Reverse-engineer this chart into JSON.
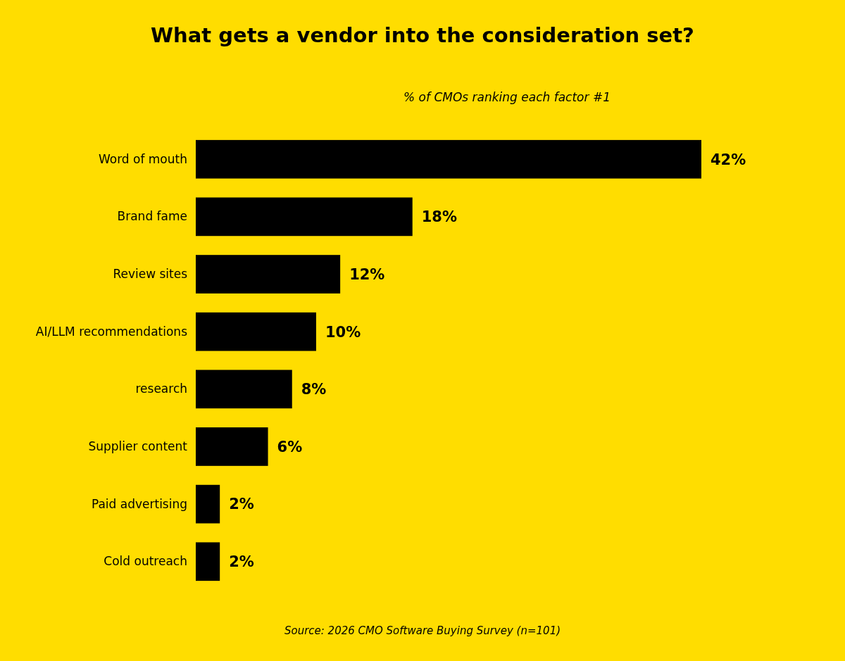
{
  "chart_data": {
    "type": "bar",
    "orientation": "horizontal",
    "title": "What gets a vendor into the consideration set?",
    "subtitle": "% of CMOs ranking each factor #1",
    "categories": [
      "Word of mouth",
      "Brand fame",
      "Review sites",
      "AI/LLM recommendations",
      "research",
      "Supplier content",
      "Paid advertising",
      "Cold outreach"
    ],
    "values": [
      42,
      18,
      12,
      10,
      8,
      6,
      2,
      2
    ],
    "value_labels": [
      "42%",
      "18%",
      "12%",
      "10%",
      "8%",
      "6%",
      "2%",
      "2%"
    ],
    "color": "#000000",
    "annotations": [
      "Source: 2026 CMO Software Buying Survey (n=101)"
    ]
  }
}
